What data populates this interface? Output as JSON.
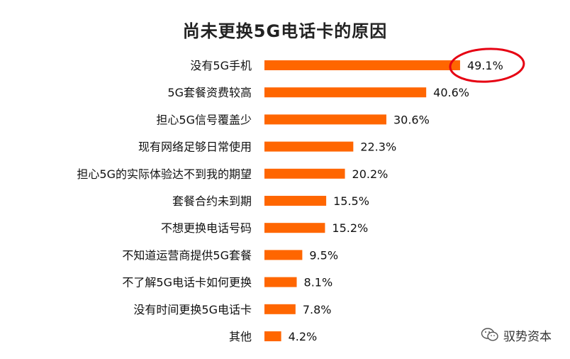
{
  "chart_data": {
    "type": "bar",
    "orientation": "horizontal",
    "title": "尚未更换5G电话卡的原因",
    "categories": [
      "没有5G手机",
      "5G套餐资费较高",
      "担心5G信号覆盖少",
      "现有网络足够日常使用",
      "担心5G的实际体验达不到我的期望",
      "套餐合约未到期",
      "不想更换电话号码",
      "不知道运营商提供5G套餐",
      "不了解5G电话卡如何更换",
      "没有时间更换5G电话卡",
      "其他"
    ],
    "values": [
      49.1,
      40.6,
      30.6,
      22.3,
      20.2,
      15.5,
      15.2,
      9.5,
      8.1,
      7.8,
      4.2
    ],
    "value_labels": [
      "49.1%",
      "40.6%",
      "30.6%",
      "22.3%",
      "20.2%",
      "15.5%",
      "15.2%",
      "9.5%",
      "8.1%",
      "7.8%",
      "4.2%"
    ],
    "highlight_index": 0,
    "grid": false,
    "legend": "none",
    "colors": {
      "bar": "#FF6600",
      "highlight_circle": "#E60012",
      "text": "#111111"
    }
  },
  "watermark": {
    "text": "驭势资本",
    "icon": "wechat-icon"
  }
}
